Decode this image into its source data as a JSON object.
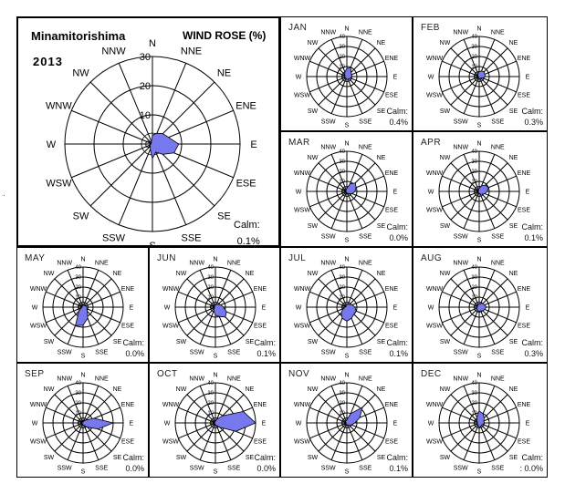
{
  "header": {
    "station": "Minamitorishima",
    "year": "2013",
    "title": "WIND ROSE (%)"
  },
  "directions": [
    "N",
    "NNE",
    "NE",
    "ENE",
    "E",
    "ESE",
    "SE",
    "SSE",
    "S",
    "SSW",
    "SW",
    "WSW",
    "W",
    "WNW",
    "NW",
    "NNW"
  ],
  "colors": {
    "fill": "#7777ee",
    "stroke": "#000000",
    "grid": "#000000"
  },
  "chart_data": [
    {
      "type": "radar",
      "name": "annual",
      "title": "WIND ROSE (%)",
      "rmax": 30,
      "rings": [
        10,
        20,
        30
      ],
      "ring_labels": [
        "0",
        "10",
        "20",
        "30"
      ],
      "values": [
        3,
        4,
        5,
        6,
        9,
        8,
        5,
        3,
        5,
        2,
        1,
        1,
        0.5,
        0.5,
        0.5,
        1
      ],
      "calm_label": "Calm:",
      "calm_value": "0.1%"
    },
    {
      "type": "radar",
      "month": "JAN",
      "rmax": 40,
      "rings": [
        10,
        20,
        30,
        40
      ],
      "ring_labels": [
        "0",
        "10",
        "20",
        "30",
        "40"
      ],
      "values": [
        8,
        10,
        6,
        5,
        5,
        4,
        3,
        3,
        3,
        2,
        2,
        2,
        2,
        2,
        3,
        5
      ],
      "calm_label": "Calm:",
      "calm_value": "0.4%"
    },
    {
      "type": "radar",
      "month": "FEB",
      "rmax": 40,
      "rings": [
        10,
        20,
        30,
        40
      ],
      "ring_labels": [
        "0",
        "10",
        "20",
        "30",
        "40"
      ],
      "values": [
        5,
        6,
        7,
        6,
        6,
        4,
        2,
        2,
        2,
        2,
        1,
        1,
        1,
        1,
        2,
        3
      ],
      "calm_label": "Calm:",
      "calm_value": "0.3%"
    },
    {
      "type": "radar",
      "month": "MAR",
      "rmax": 40,
      "rings": [
        10,
        20,
        30,
        40
      ],
      "ring_labels": [
        "0",
        "10",
        "20",
        "30",
        "40"
      ],
      "values": [
        3,
        8,
        12,
        10,
        8,
        6,
        3,
        2,
        2,
        1,
        1,
        1,
        1,
        1,
        1,
        2
      ],
      "calm_label": "Calm:",
      "calm_value": "0.0%"
    },
    {
      "type": "radar",
      "month": "APR",
      "rmax": 40,
      "rings": [
        10,
        20,
        30,
        40
      ],
      "ring_labels": [
        "0",
        "10",
        "20",
        "30",
        "40"
      ],
      "values": [
        3,
        6,
        9,
        10,
        8,
        6,
        4,
        3,
        2,
        2,
        1,
        1,
        1,
        1,
        1,
        2
      ],
      "calm_label": "Calm:",
      "calm_value": "0.1%"
    },
    {
      "type": "radar",
      "month": "MAY",
      "rmax": 40,
      "rings": [
        10,
        20,
        30,
        40
      ],
      "ring_labels": [
        "0",
        "10",
        "20",
        "30",
        "40"
      ],
      "values": [
        2,
        2,
        2,
        3,
        4,
        4,
        6,
        12,
        18,
        20,
        6,
        2,
        1,
        1,
        1,
        2
      ],
      "calm_label": "Calm:",
      "calm_value": "0.0%"
    },
    {
      "type": "radar",
      "month": "JUN",
      "rmax": 40,
      "rings": [
        10,
        20,
        30,
        40
      ],
      "ring_labels": [
        "0",
        "10",
        "20",
        "30",
        "40"
      ],
      "values": [
        2,
        3,
        4,
        6,
        8,
        12,
        14,
        10,
        8,
        4,
        2,
        1,
        1,
        1,
        1,
        2
      ],
      "calm_label": "Calm:",
      "calm_value": "0.1%"
    },
    {
      "type": "radar",
      "month": "JUL",
      "rmax": 40,
      "rings": [
        10,
        20,
        30,
        40
      ],
      "ring_labels": [
        "0",
        "10",
        "20",
        "30",
        "40"
      ],
      "values": [
        3,
        3,
        4,
        6,
        8,
        10,
        10,
        12,
        14,
        12,
        8,
        4,
        2,
        1,
        1,
        2
      ],
      "calm_label": "Calm:",
      "calm_value": "0.1%"
    },
    {
      "type": "radar",
      "month": "AUG",
      "rmax": 40,
      "rings": [
        10,
        20,
        30,
        40
      ],
      "ring_labels": [
        "0",
        "10",
        "20",
        "30",
        "40"
      ],
      "values": [
        3,
        4,
        5,
        6,
        7,
        6,
        5,
        4,
        4,
        4,
        3,
        3,
        2,
        2,
        2,
        3
      ],
      "calm_label": "Calm:",
      "calm_value": "0.3%"
    },
    {
      "type": "radar",
      "month": "SEP",
      "rmax": 40,
      "rings": [
        10,
        20,
        30,
        40
      ],
      "ring_labels": [
        "0",
        "10",
        "20",
        "30",
        "40"
      ],
      "values": [
        1,
        2,
        4,
        12,
        30,
        16,
        6,
        3,
        2,
        1,
        1,
        1,
        1,
        1,
        1,
        1
      ],
      "calm_label": "Calm:",
      "calm_value": "0.0%"
    },
    {
      "type": "radar",
      "month": "OCT",
      "rmax": 40,
      "rings": [
        10,
        20,
        30,
        40
      ],
      "ring_labels": [
        "0",
        "10",
        "20",
        "30",
        "40"
      ],
      "values": [
        2,
        4,
        10,
        30,
        40,
        22,
        6,
        3,
        2,
        1,
        1,
        1,
        1,
        1,
        1,
        1
      ],
      "calm_label": "Calm:",
      "calm_value": "0.0%"
    },
    {
      "type": "radar",
      "month": "NOV",
      "rmax": 40,
      "rings": [
        10,
        20,
        30,
        40
      ],
      "ring_labels": [
        "0",
        "10",
        "20",
        "30",
        "40"
      ],
      "values": [
        3,
        10,
        22,
        14,
        8,
        5,
        3,
        2,
        2,
        2,
        1,
        1,
        1,
        1,
        2,
        2
      ],
      "calm_label": "Calm:",
      "calm_value": "0.1%"
    },
    {
      "type": "radar",
      "month": "DEC",
      "rmax": 40,
      "rings": [
        10,
        20,
        30,
        40
      ],
      "ring_labels": [
        "0",
        "10",
        "20",
        "30",
        "40"
      ],
      "values": [
        12,
        10,
        7,
        5,
        5,
        4,
        3,
        4,
        4,
        3,
        2,
        2,
        2,
        2,
        3,
        6
      ],
      "calm_label": "Calm:",
      "calm_value": ": 0.0%"
    }
  ]
}
